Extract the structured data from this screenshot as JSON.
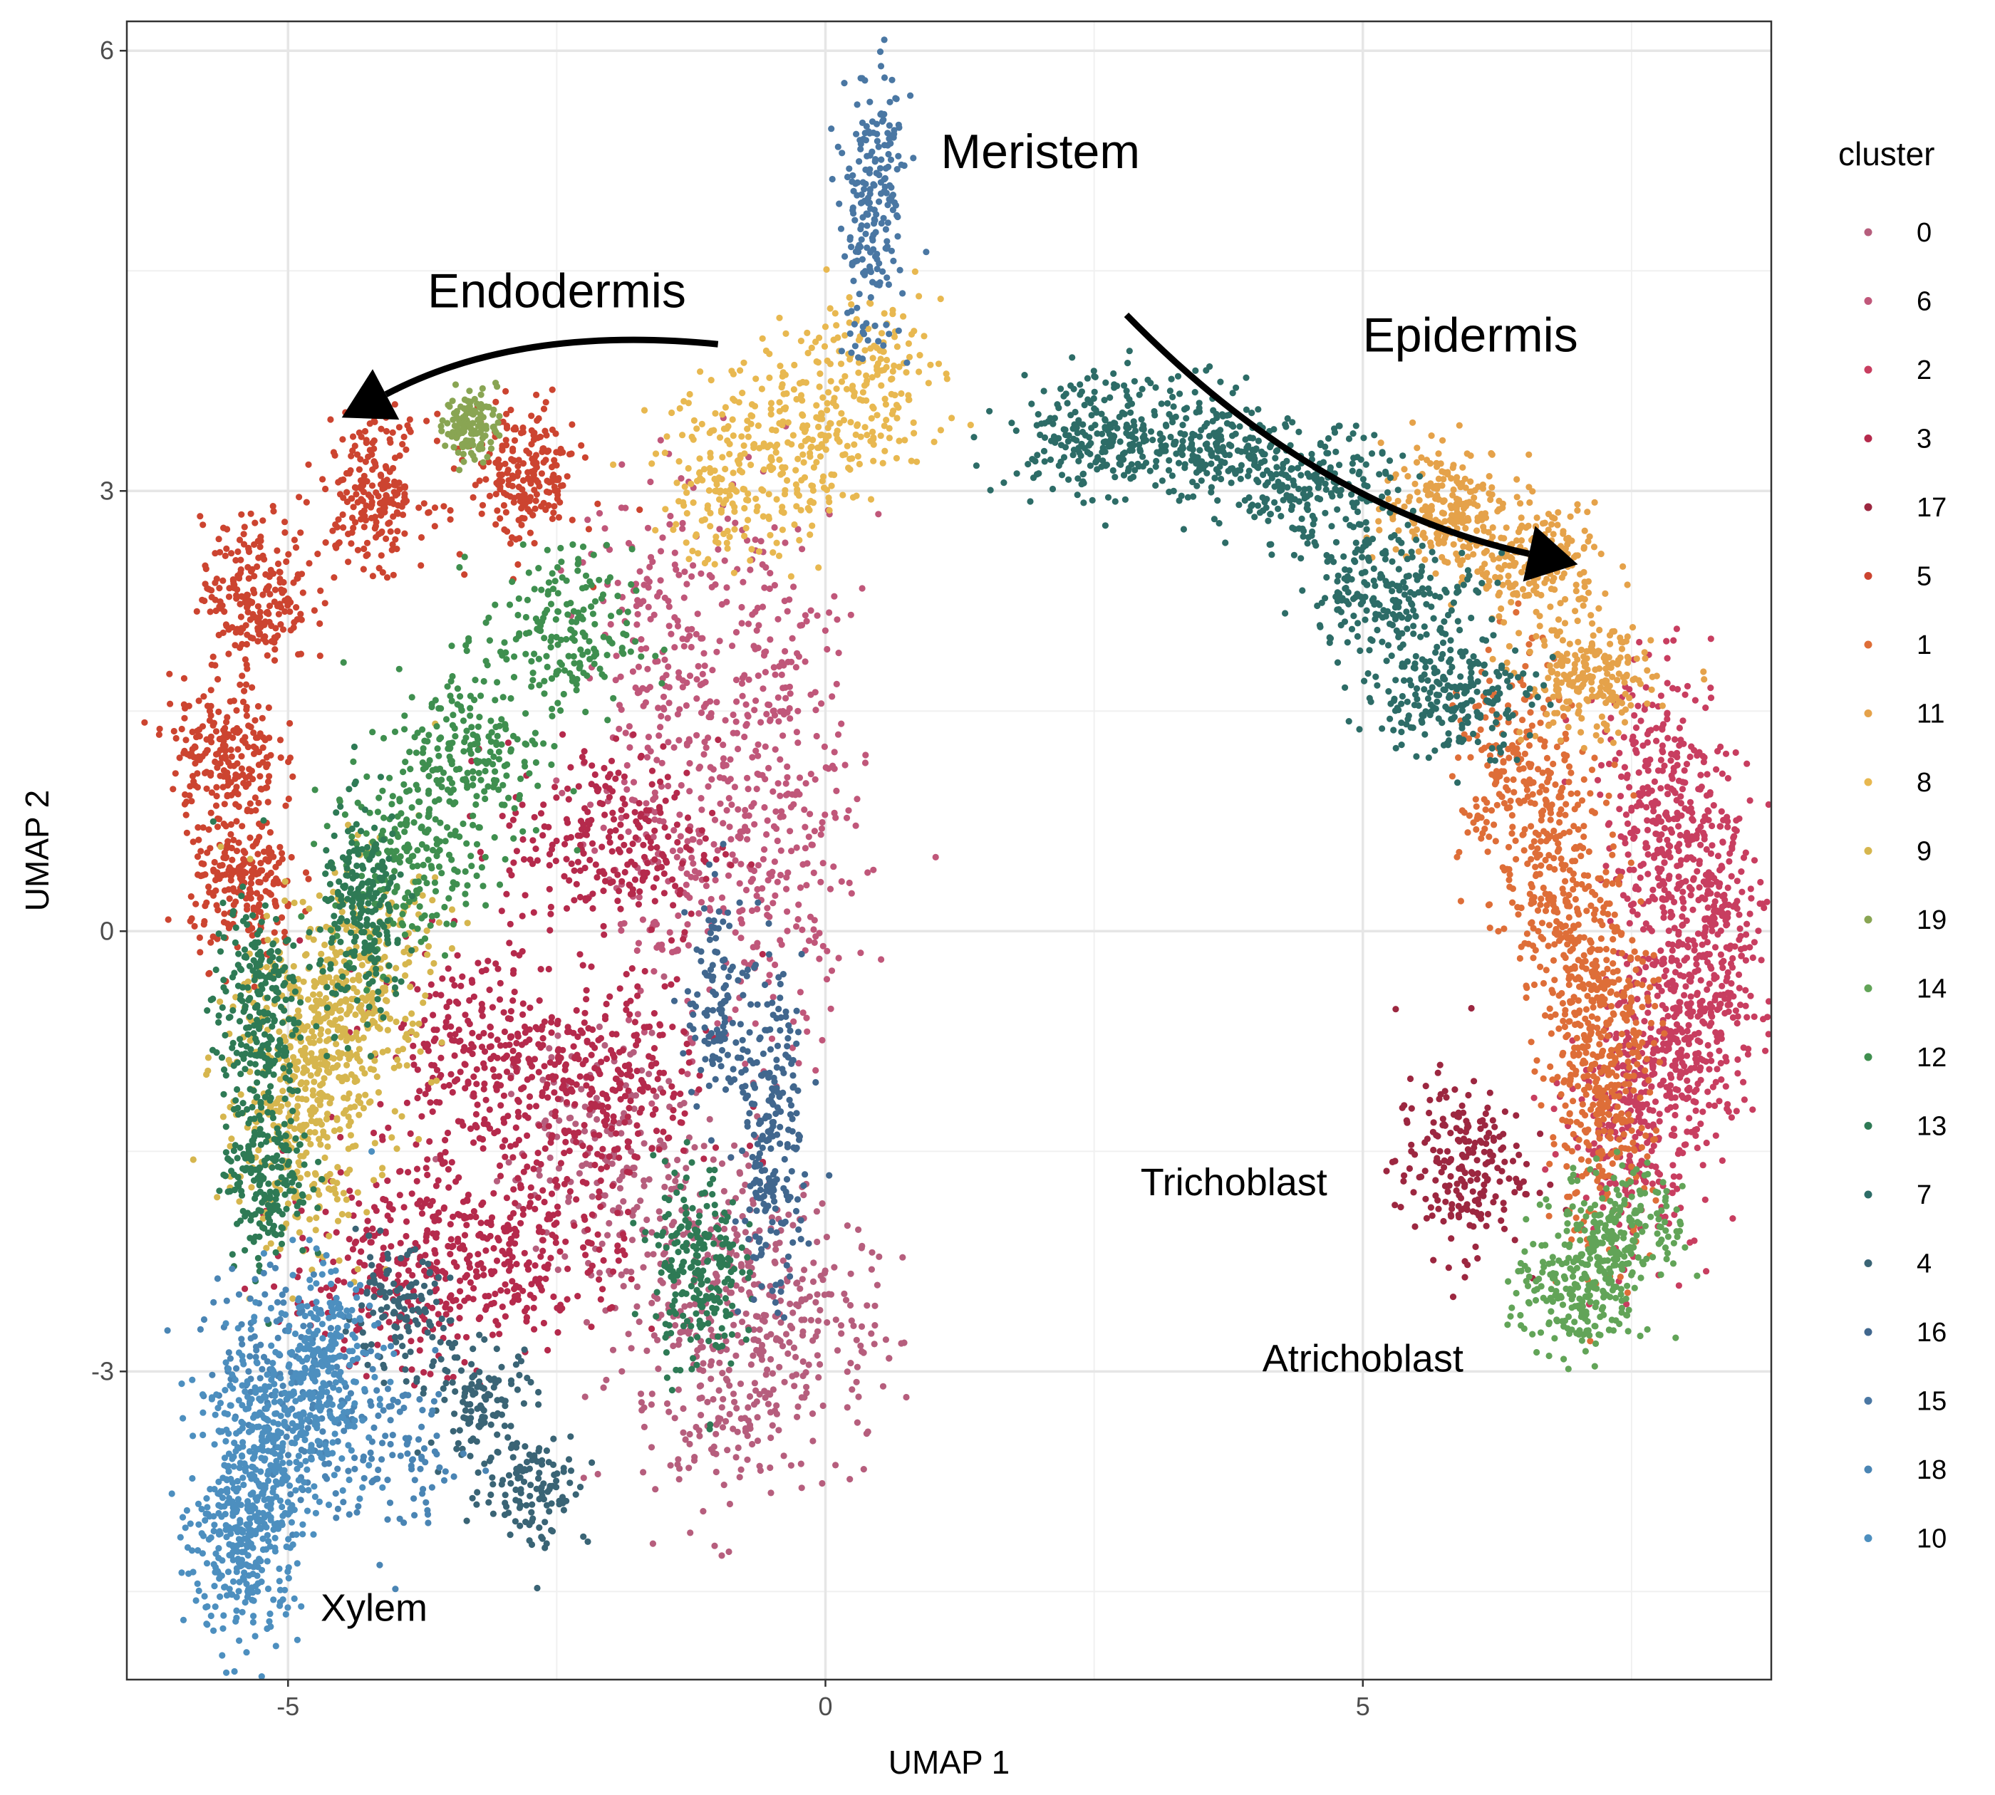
{
  "chart_data": {
    "type": "scatter",
    "title": "",
    "xlabel": "UMAP 1",
    "ylabel": "UMAP 2",
    "xlim": [
      -6.5,
      8.8
    ],
    "ylim": [
      -5.1,
      6.2
    ],
    "xticks": [
      -5,
      0,
      5
    ],
    "xtick_labels": [
      "-5",
      "0",
      "5"
    ],
    "yticks": [
      -3,
      0,
      3,
      6
    ],
    "ytick_labels": [
      "-3",
      "0",
      "3",
      "6"
    ],
    "grid": true,
    "legend": {
      "title": "cluster",
      "position": "right",
      "entries": [
        {
          "label": "0",
          "color": "#b65e7d"
        },
        {
          "label": "6",
          "color": "#c0577a"
        },
        {
          "label": "2",
          "color": "#c83e60"
        },
        {
          "label": "3",
          "color": "#b52a4c"
        },
        {
          "label": "17",
          "color": "#9c2740"
        },
        {
          "label": "5",
          "color": "#cc4430"
        },
        {
          "label": "1",
          "color": "#de6e38"
        },
        {
          "label": "11",
          "color": "#e5a24a"
        },
        {
          "label": "8",
          "color": "#e8b850"
        },
        {
          "label": "9",
          "color": "#d6b64e"
        },
        {
          "label": "19",
          "color": "#89a553"
        },
        {
          "label": "14",
          "color": "#62a458"
        },
        {
          "label": "12",
          "color": "#3f8f4f"
        },
        {
          "label": "13",
          "color": "#2e7a55"
        },
        {
          "label": "7",
          "color": "#2d6c67"
        },
        {
          "label": "4",
          "color": "#3a6475"
        },
        {
          "label": "16",
          "color": "#41678e"
        },
        {
          "label": "15",
          "color": "#4a77a3"
        },
        {
          "label": "18",
          "color": "#4a85b4"
        },
        {
          "label": "10",
          "color": "#4d8fbf"
        }
      ]
    },
    "annotations": [
      {
        "text": "Meristem",
        "x": 2.0,
        "y": 5.2
      },
      {
        "text": "Endodermis",
        "x": -2.5,
        "y": 4.25
      },
      {
        "text": "Epidermis",
        "x": 6.0,
        "y": 3.95
      },
      {
        "text": "Trichoblast",
        "x": 3.8,
        "y": -1.8
      },
      {
        "text": "Atrichoblast",
        "x": 5.0,
        "y": -3.0
      },
      {
        "text": "Xylem",
        "x": -4.2,
        "y": -4.7
      }
    ],
    "arrows": [
      {
        "name": "Endodermis",
        "from": [
          -1.0,
          4.0
        ],
        "to": [
          -4.5,
          3.5
        ]
      },
      {
        "name": "Epidermis",
        "from": [
          2.8,
          4.2
        ],
        "to": [
          7.0,
          2.5
        ]
      }
    ],
    "clusters": [
      {
        "label": "0",
        "n": 700,
        "centers": [
          [
            -2.0,
            -1.5
          ],
          [
            -1.2,
            -2.2
          ],
          [
            -1.0,
            -3.2
          ],
          [
            -0.3,
            -2.7
          ]
        ],
        "spread": [
          0.5,
          0.4
        ]
      },
      {
        "label": "6",
        "n": 700,
        "centers": [
          [
            -1.5,
            2.0
          ],
          [
            -0.5,
            1.8
          ],
          [
            -1.3,
            0.5
          ],
          [
            -0.4,
            0.3
          ]
        ],
        "spread": [
          0.4,
          0.6
        ]
      },
      {
        "label": "2",
        "n": 1100,
        "centers": [
          [
            7.8,
            0.9
          ],
          [
            8.2,
            0.1
          ],
          [
            8.0,
            -0.7
          ],
          [
            7.5,
            -1.3
          ]
        ],
        "spread": [
          0.3,
          0.45
        ]
      },
      {
        "label": "3",
        "n": 1300,
        "centers": [
          [
            -4.0,
            -2.3
          ],
          [
            -2.8,
            -2.1
          ],
          [
            -2.1,
            -1.1
          ],
          [
            -2.0,
            0.6
          ],
          [
            -3.2,
            -0.8
          ]
        ],
        "spread": [
          0.5,
          0.35
        ]
      },
      {
        "label": "17",
        "n": 220,
        "centers": [
          [
            5.9,
            -1.6
          ]
        ],
        "spread": [
          0.3,
          0.3
        ]
      },
      {
        "label": "5",
        "n": 1100,
        "centers": [
          [
            -5.3,
            2.3
          ],
          [
            -5.6,
            1.2
          ],
          [
            -5.4,
            0.3
          ],
          [
            -4.2,
            3.0
          ],
          [
            -2.8,
            3.1
          ]
        ],
        "spread": [
          0.25,
          0.25
        ]
      },
      {
        "label": "1",
        "n": 900,
        "centers": [
          [
            6.4,
            1.0
          ],
          [
            6.9,
            0.3
          ],
          [
            7.2,
            -0.5
          ],
          [
            7.2,
            -1.3
          ]
        ],
        "spread": [
          0.25,
          0.45
        ]
      },
      {
        "label": "11",
        "n": 650,
        "centers": [
          [
            5.8,
            2.9
          ],
          [
            6.6,
            2.5
          ],
          [
            7.1,
            1.7
          ]
        ],
        "spread": [
          0.3,
          0.2
        ]
      },
      {
        "label": "8",
        "n": 500,
        "centers": [
          [
            -0.9,
            3.1
          ],
          [
            -0.2,
            3.3
          ],
          [
            0.4,
            3.8
          ]
        ],
        "spread": [
          0.35,
          0.3
        ]
      },
      {
        "label": "9",
        "n": 750,
        "centers": [
          [
            -4.8,
            -0.7
          ],
          [
            -4.3,
            -0.3
          ],
          [
            -4.9,
            -1.4
          ]
        ],
        "spread": [
          0.35,
          0.4
        ]
      },
      {
        "label": "19",
        "n": 130,
        "centers": [
          [
            -3.3,
            3.45
          ]
        ],
        "spread": [
          0.12,
          0.12
        ]
      },
      {
        "label": "14",
        "n": 400,
        "centers": [
          [
            7.4,
            -2.0
          ],
          [
            7.0,
            -2.5
          ]
        ],
        "spread": [
          0.3,
          0.2
        ]
      },
      {
        "label": "12",
        "n": 600,
        "centers": [
          [
            -2.5,
            2.0
          ],
          [
            -3.3,
            1.2
          ],
          [
            -3.9,
            0.5
          ]
        ],
        "spread": [
          0.35,
          0.3
        ]
      },
      {
        "label": "13",
        "n": 900,
        "centers": [
          [
            -5.3,
            -0.5
          ],
          [
            -5.2,
            -1.6
          ],
          [
            -1.2,
            -2.3
          ],
          [
            -4.3,
            0.1
          ]
        ],
        "spread": [
          0.2,
          0.35
        ]
      },
      {
        "label": "7",
        "n": 1100,
        "centers": [
          [
            2.5,
            3.4
          ],
          [
            3.5,
            3.3
          ],
          [
            4.5,
            3.0
          ],
          [
            5.3,
            2.3
          ],
          [
            5.8,
            1.6
          ]
        ],
        "spread": [
          0.4,
          0.2
        ]
      },
      {
        "label": "4",
        "n": 350,
        "centers": [
          [
            -4.0,
            -2.6
          ],
          [
            -3.2,
            -3.2
          ],
          [
            -2.7,
            -3.8
          ]
        ],
        "spread": [
          0.25,
          0.2
        ]
      },
      {
        "label": "16",
        "n": 350,
        "centers": [
          [
            -1.0,
            -0.5
          ],
          [
            -0.5,
            -1.0
          ],
          [
            -0.5,
            -1.8
          ]
        ],
        "spread": [
          0.15,
          0.4
        ]
      },
      {
        "label": "15",
        "n": 220,
        "centers": [
          [
            0.5,
            5.2
          ],
          [
            0.4,
            4.6
          ]
        ],
        "spread": [
          0.15,
          0.35
        ]
      },
      {
        "label": "18",
        "n": 250,
        "centers": [
          [
            -5.2,
            -2.8
          ],
          [
            -4.6,
            -3.4
          ],
          [
            -3.9,
            -3.6
          ]
        ],
        "spread": [
          0.3,
          0.3
        ]
      },
      {
        "label": "10",
        "n": 850,
        "centers": [
          [
            -5.3,
            -3.5
          ],
          [
            -5.4,
            -4.2
          ],
          [
            -4.7,
            -3.0
          ]
        ],
        "spread": [
          0.25,
          0.35
        ]
      }
    ]
  }
}
